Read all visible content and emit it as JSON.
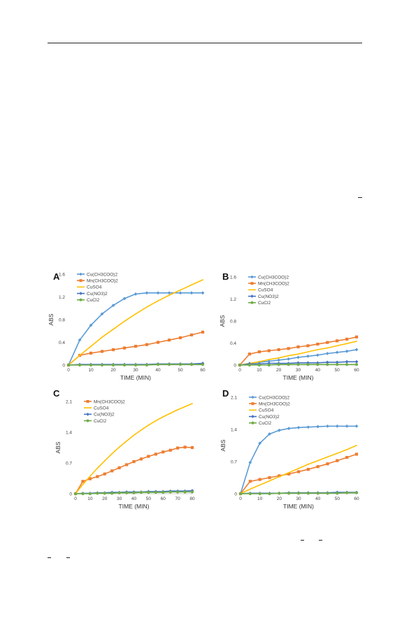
{
  "chart_data": [
    {
      "panel": "A",
      "type": "line",
      "xlabel": "TIME (MIN)",
      "ylabel": "ABS",
      "xlim": [
        0,
        60
      ],
      "ylim": [
        0,
        1.6
      ],
      "xticks": [
        0,
        10,
        20,
        30,
        40,
        50,
        60
      ],
      "yticks": [
        0,
        0.4,
        0.8,
        1.2,
        1.6
      ],
      "legend": "top-left",
      "series": [
        {
          "name": "Cu(CH3COO)2",
          "color": "#5b9bd5",
          "marker": "diamond",
          "x": [
            0,
            5,
            10,
            15,
            20,
            25,
            30,
            35,
            40,
            45,
            50,
            55,
            60
          ],
          "y": [
            0,
            0.44,
            0.7,
            0.9,
            1.05,
            1.17,
            1.25,
            1.27,
            1.27,
            1.27,
            1.27,
            1.27,
            1.27
          ]
        },
        {
          "name": "Mn(CH3COO)2",
          "color": "#ed7d31",
          "marker": "square",
          "x": [
            0,
            5,
            10,
            15,
            20,
            25,
            30,
            35,
            40,
            45,
            50,
            55,
            60
          ],
          "y": [
            0,
            0.17,
            0.21,
            0.24,
            0.27,
            0.3,
            0.33,
            0.36,
            0.4,
            0.44,
            0.48,
            0.53,
            0.58
          ]
        },
        {
          "name": "CuSO4",
          "color": "#ffc000",
          "marker": "none",
          "x": [
            0,
            5,
            10,
            15,
            20,
            25,
            30,
            35,
            40,
            45,
            50,
            55,
            60
          ],
          "y": [
            0,
            0.17,
            0.33,
            0.49,
            0.63,
            0.77,
            0.9,
            1.02,
            1.13,
            1.23,
            1.32,
            1.41,
            1.5
          ]
        },
        {
          "name": "Cu(NO3)2",
          "color": "#4472c4",
          "marker": "diamond",
          "x": [
            0,
            5,
            10,
            15,
            20,
            25,
            30,
            35,
            40,
            45,
            50,
            55,
            60
          ],
          "y": [
            0,
            0.01,
            0.01,
            0.01,
            0.01,
            0.01,
            0.01,
            0.01,
            0.02,
            0.02,
            0.02,
            0.02,
            0.03
          ]
        },
        {
          "name": "CuCl2",
          "color": "#70ad47",
          "marker": "circle",
          "x": [
            0,
            5,
            10,
            15,
            20,
            25,
            30,
            35,
            40,
            45,
            50,
            55,
            60
          ],
          "y": [
            0,
            0,
            0,
            0,
            0,
            0,
            0,
            0,
            0.01,
            0.01,
            0.01,
            0.01,
            0.01
          ]
        }
      ]
    },
    {
      "panel": "B",
      "type": "line",
      "xlabel": "TIME (MIN)",
      "ylabel": "ABS",
      "xlim": [
        0,
        60
      ],
      "ylim": [
        0,
        1.6
      ],
      "xticks": [
        0,
        10,
        20,
        30,
        40,
        50,
        60
      ],
      "yticks": [
        0,
        0.4,
        0.8,
        1.2,
        1.6
      ],
      "legend": "top-left",
      "series": [
        {
          "name": "Cu(CH3COO)2",
          "color": "#5b9bd5",
          "marker": "diamond",
          "x": [
            0,
            5,
            10,
            15,
            20,
            25,
            30,
            35,
            40,
            45,
            50,
            55,
            60
          ],
          "y": [
            0,
            0.03,
            0.05,
            0.07,
            0.09,
            0.11,
            0.14,
            0.16,
            0.18,
            0.21,
            0.23,
            0.25,
            0.28
          ]
        },
        {
          "name": "Mn(CH3COO)2",
          "color": "#ed7d31",
          "marker": "square",
          "x": [
            0,
            5,
            10,
            15,
            20,
            25,
            30,
            35,
            40,
            45,
            50,
            55,
            60
          ],
          "y": [
            0,
            0.2,
            0.24,
            0.26,
            0.28,
            0.3,
            0.33,
            0.35,
            0.38,
            0.41,
            0.44,
            0.47,
            0.51
          ]
        },
        {
          "name": "CuSO4",
          "color": "#ffc000",
          "marker": "none",
          "x": [
            0,
            5,
            10,
            15,
            20,
            25,
            30,
            35,
            40,
            45,
            50,
            55,
            60
          ],
          "y": [
            0,
            0.03,
            0.06,
            0.1,
            0.13,
            0.17,
            0.2,
            0.24,
            0.28,
            0.31,
            0.35,
            0.39,
            0.43
          ]
        },
        {
          "name": "Cu(NO3)2",
          "color": "#4472c4",
          "marker": "diamond",
          "x": [
            0,
            5,
            10,
            15,
            20,
            25,
            30,
            35,
            40,
            45,
            50,
            55,
            60
          ],
          "y": [
            0,
            0.02,
            0.02,
            0.03,
            0.03,
            0.03,
            0.04,
            0.04,
            0.04,
            0.05,
            0.05,
            0.06,
            0.06
          ]
        },
        {
          "name": "CuCl2",
          "color": "#70ad47",
          "marker": "circle",
          "x": [
            0,
            5,
            10,
            15,
            20,
            25,
            30,
            35,
            40,
            45,
            50,
            55,
            60
          ],
          "y": [
            0,
            0,
            0,
            0,
            0.01,
            0.01,
            0.01,
            0.01,
            0.01,
            0.01,
            0.01,
            0.01,
            0.01
          ]
        }
      ]
    },
    {
      "panel": "C",
      "type": "line",
      "xlabel": "TIME (MIN)",
      "ylabel": "ABS",
      "xlim": [
        0,
        80
      ],
      "ylim": [
        0,
        2.1
      ],
      "xticks": [
        0,
        10,
        20,
        30,
        40,
        50,
        60,
        70,
        80
      ],
      "yticks": [
        0,
        0.7,
        1.4,
        2.1
      ],
      "legend": "top-left",
      "series": [
        {
          "name": "Mn(CH3COO)2",
          "color": "#ed7d31",
          "marker": "square",
          "x": [
            0,
            5,
            10,
            15,
            20,
            25,
            30,
            35,
            40,
            45,
            50,
            55,
            60,
            65,
            70,
            75,
            80
          ],
          "y": [
            0,
            0.28,
            0.34,
            0.39,
            0.45,
            0.52,
            0.59,
            0.66,
            0.73,
            0.79,
            0.85,
            0.9,
            0.95,
            0.99,
            1.04,
            1.06,
            1.05
          ]
        },
        {
          "name": "CuSO4",
          "color": "#ffc000",
          "marker": "none",
          "x": [
            0,
            5,
            10,
            15,
            20,
            25,
            30,
            35,
            40,
            45,
            50,
            55,
            60,
            65,
            70,
            75,
            80
          ],
          "y": [
            0,
            0.21,
            0.4,
            0.58,
            0.75,
            0.91,
            1.06,
            1.2,
            1.33,
            1.45,
            1.56,
            1.66,
            1.75,
            1.83,
            1.91,
            1.98,
            2.05
          ]
        },
        {
          "name": "Cu(NO3)2",
          "color": "#4472c4",
          "marker": "diamond",
          "x": [
            0,
            5,
            10,
            15,
            20,
            25,
            30,
            35,
            40,
            45,
            50,
            55,
            60,
            65,
            70,
            75,
            80
          ],
          "y": [
            0,
            0.01,
            0.01,
            0.02,
            0.02,
            0.03,
            0.03,
            0.04,
            0.04,
            0.04,
            0.05,
            0.05,
            0.05,
            0.06,
            0.06,
            0.06,
            0.07
          ]
        },
        {
          "name": "CuCl2",
          "color": "#70ad47",
          "marker": "circle",
          "x": [
            0,
            5,
            10,
            15,
            20,
            25,
            30,
            35,
            40,
            45,
            50,
            55,
            60,
            65,
            70,
            75,
            80
          ],
          "y": [
            0,
            0,
            0,
            0.01,
            0.01,
            0.01,
            0.02,
            0.02,
            0.02,
            0.03,
            0.03,
            0.03,
            0.03,
            0.04,
            0.04,
            0.04,
            0.04
          ]
        }
      ]
    },
    {
      "panel": "D",
      "type": "line",
      "xlabel": "TIME (MIN)",
      "ylabel": "ABS",
      "xlim": [
        0,
        60
      ],
      "ylim": [
        0,
        2.1
      ],
      "xticks": [
        0,
        10,
        20,
        30,
        40,
        50,
        60
      ],
      "yticks": [
        0,
        0.7,
        1.4,
        2.1
      ],
      "legend": "top-left",
      "series": [
        {
          "name": "Cu(CH3COO)2",
          "color": "#5b9bd5",
          "marker": "diamond",
          "x": [
            0,
            5,
            10,
            15,
            20,
            25,
            30,
            35,
            40,
            45,
            50,
            55,
            60
          ],
          "y": [
            0,
            0.68,
            1.1,
            1.3,
            1.38,
            1.42,
            1.44,
            1.45,
            1.46,
            1.47,
            1.47,
            1.47,
            1.47
          ]
        },
        {
          "name": "Mn(CH3COO)2",
          "color": "#ed7d31",
          "marker": "square",
          "x": [
            0,
            5,
            10,
            15,
            20,
            25,
            30,
            35,
            40,
            45,
            50,
            55,
            60
          ],
          "y": [
            0,
            0.27,
            0.31,
            0.35,
            0.39,
            0.43,
            0.48,
            0.53,
            0.59,
            0.65,
            0.72,
            0.79,
            0.86
          ]
        },
        {
          "name": "CuSO4",
          "color": "#ffc000",
          "marker": "none",
          "x": [
            0,
            5,
            10,
            15,
            20,
            25,
            30,
            35,
            40,
            45,
            50,
            55,
            60
          ],
          "y": [
            0,
            0.1,
            0.19,
            0.28,
            0.37,
            0.46,
            0.55,
            0.64,
            0.72,
            0.8,
            0.88,
            0.96,
            1.05
          ]
        },
        {
          "name": "Cu(NO3)2",
          "color": "#4472c4",
          "marker": "diamond",
          "x": [
            0,
            5,
            10,
            15,
            20,
            25,
            30,
            35,
            40,
            45,
            50,
            55,
            60
          ],
          "y": [
            0,
            0.01,
            0.01,
            0.01,
            0.01,
            0.02,
            0.02,
            0.02,
            0.02,
            0.02,
            0.03,
            0.03,
            0.03
          ]
        },
        {
          "name": "CuCl2",
          "color": "#70ad47",
          "marker": "circle",
          "x": [
            0,
            5,
            10,
            15,
            20,
            25,
            30,
            35,
            40,
            45,
            50,
            55,
            60
          ],
          "y": [
            0,
            0,
            0,
            0,
            0.01,
            0.01,
            0.01,
            0.01,
            0.01,
            0.01,
            0.01,
            0.02,
            0.02
          ]
        }
      ]
    }
  ]
}
